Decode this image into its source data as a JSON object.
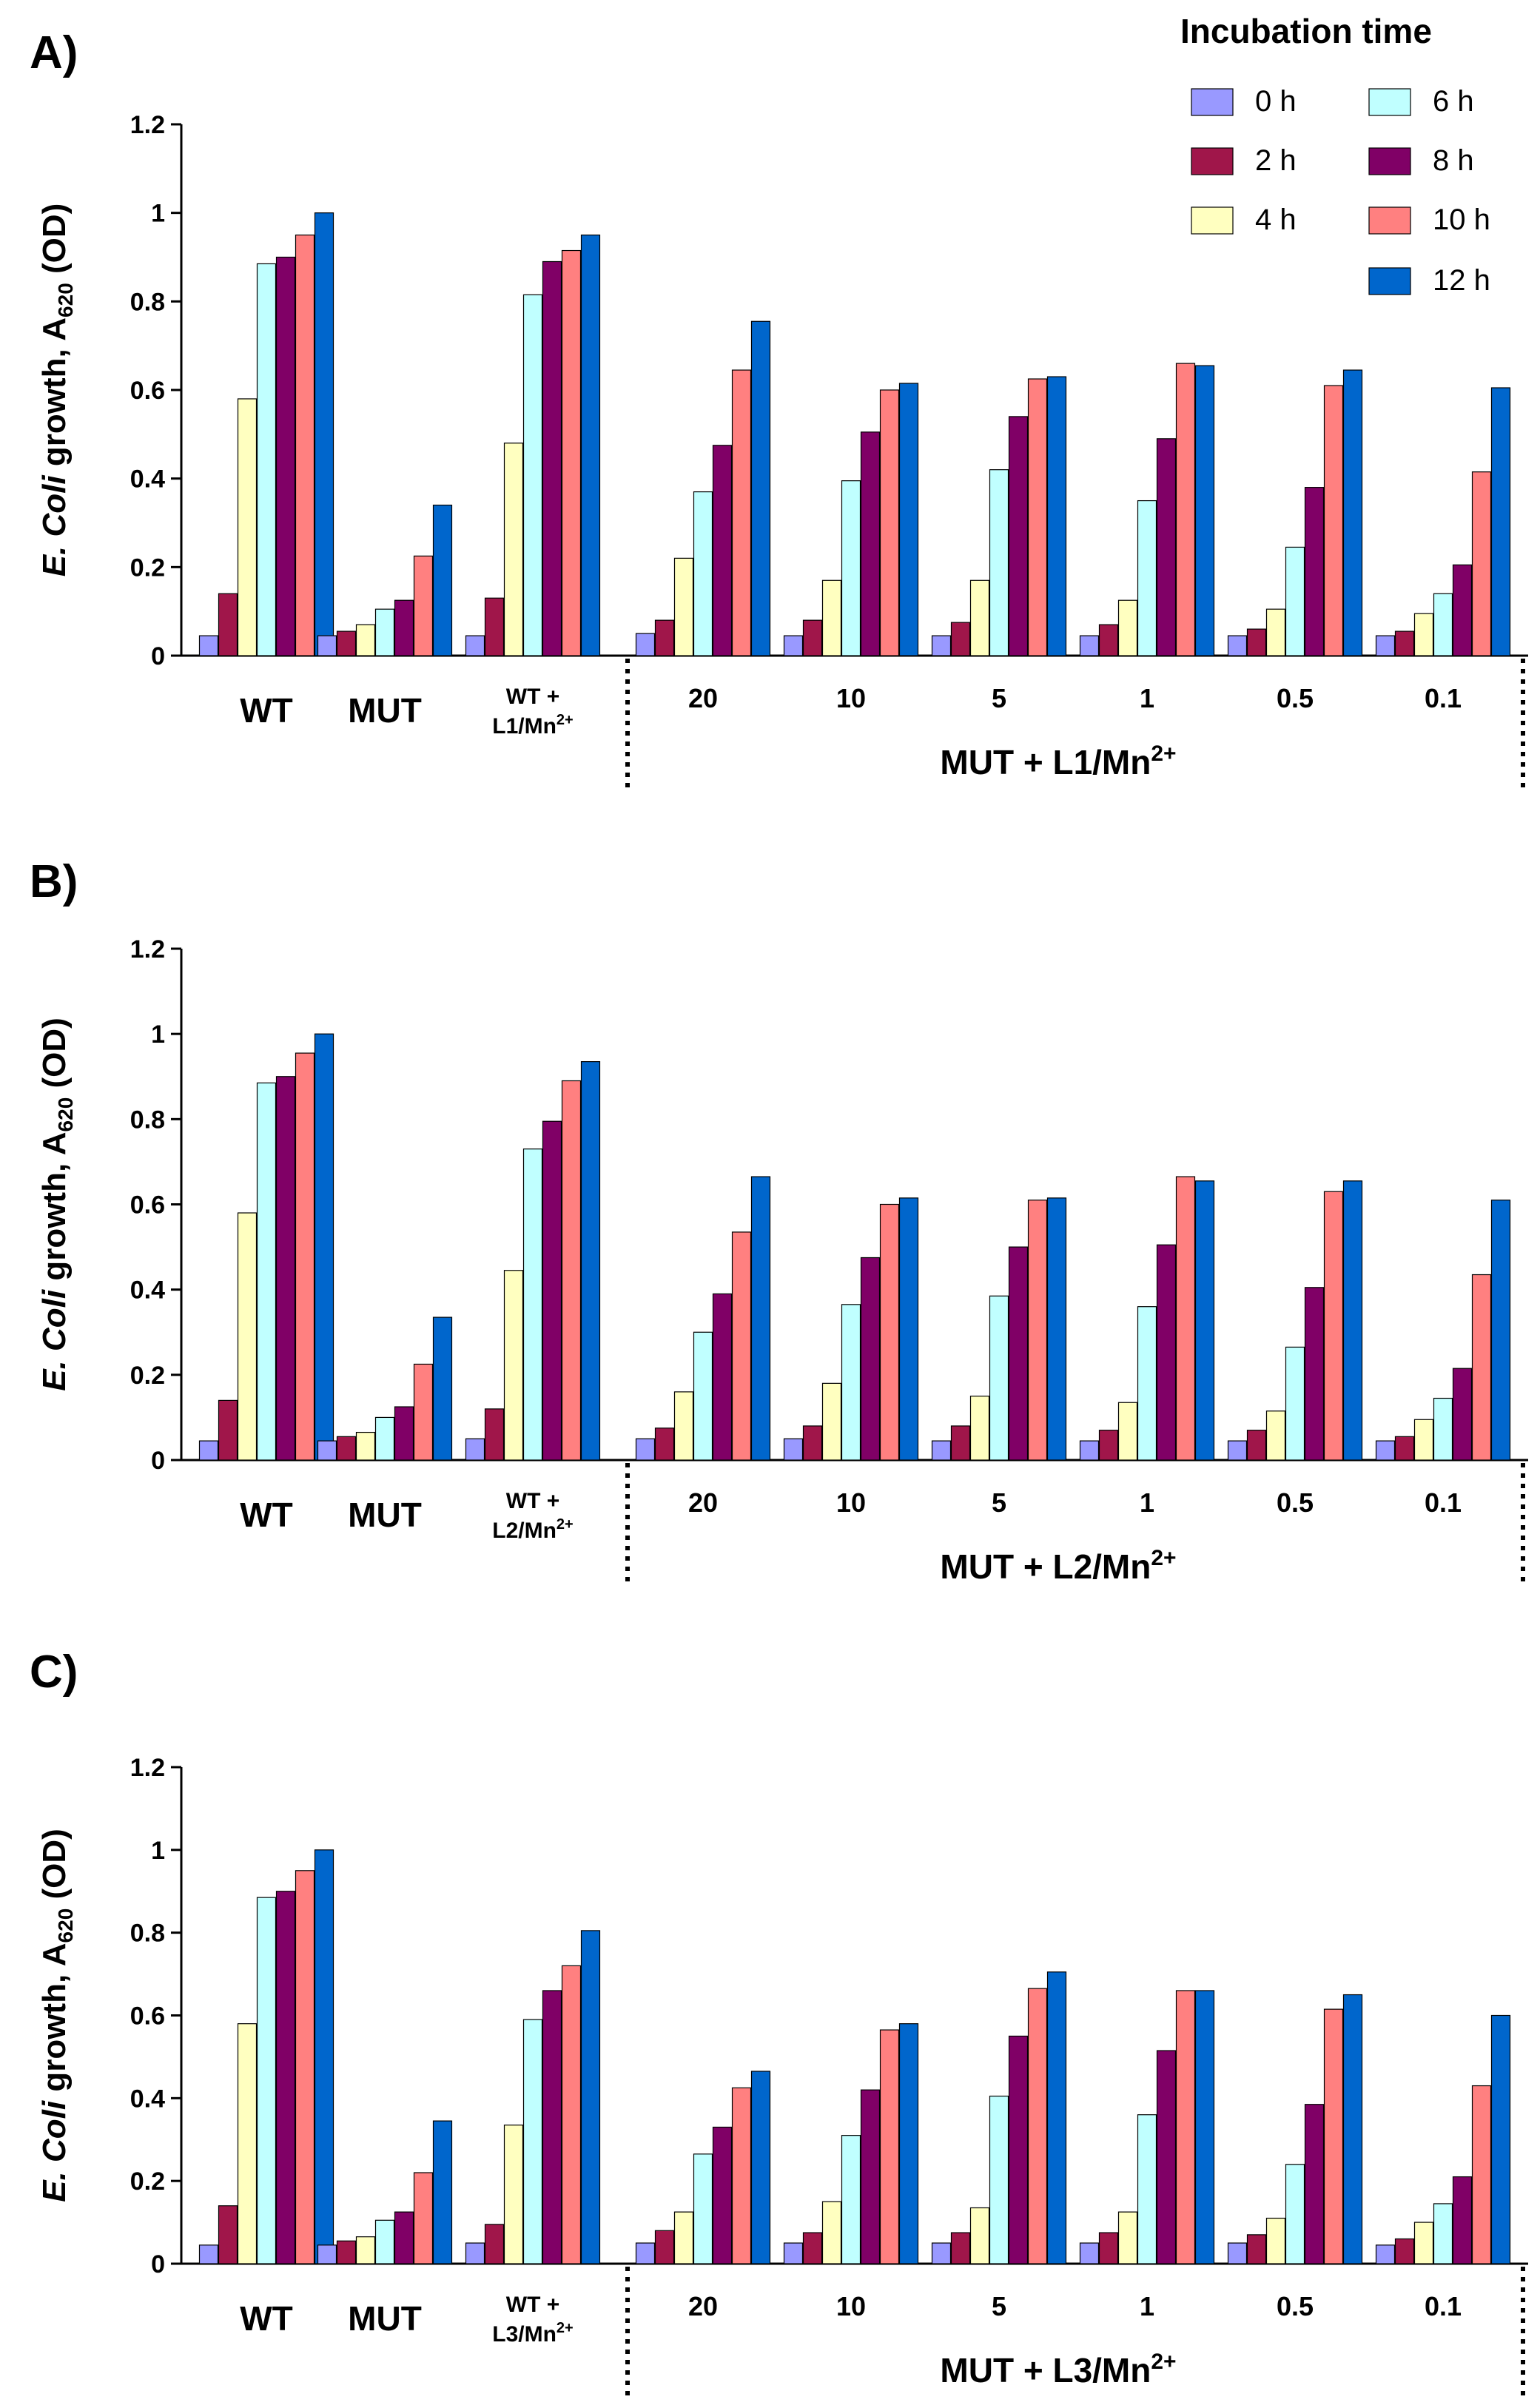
{
  "legend": {
    "title": "Incubation time",
    "entries": [
      {
        "label": "0 h",
        "color": "#9999FF"
      },
      {
        "label": "2 h",
        "color": "#A0164A"
      },
      {
        "label": "4 h",
        "color": "#FFFFC0"
      },
      {
        "label": "6 h",
        "color": "#C0FFFF"
      },
      {
        "label": "8 h",
        "color": "#800066"
      },
      {
        "label": "10 h",
        "color": "#FF8080"
      },
      {
        "label": "12 h",
        "color": "#0066CC"
      }
    ]
  },
  "chart_data": [
    {
      "type": "bar",
      "panel": "A)",
      "ylabel": {
        "italic": "E. Coli",
        "rest": " growth, A",
        "sub": "620",
        "tail": " (OD)"
      },
      "ylim": [
        0,
        1.2
      ],
      "yticks": [
        "0",
        "0.2",
        "0.4",
        "0.6",
        "0.8",
        "1",
        "1.2"
      ],
      "groups": [
        {
          "label": "WT",
          "values": [
            0.045,
            0.14,
            0.58,
            0.885,
            0.9,
            0.95,
            1.0
          ]
        },
        {
          "label": "MUT",
          "values": [
            0.045,
            0.055,
            0.07,
            0.105,
            0.125,
            0.225,
            0.34
          ]
        },
        {
          "label_top": "WT +",
          "label_bottom": "L1/Mn",
          "label_sup": "2+",
          "values": [
            0.045,
            0.13,
            0.48,
            0.815,
            0.89,
            0.915,
            0.95
          ]
        },
        {
          "label": "20",
          "values": [
            0.05,
            0.08,
            0.22,
            0.37,
            0.475,
            0.645,
            0.755
          ]
        },
        {
          "label": "10",
          "values": [
            0.045,
            0.08,
            0.17,
            0.395,
            0.505,
            0.6,
            0.615
          ]
        },
        {
          "label": "5",
          "values": [
            0.045,
            0.075,
            0.17,
            0.42,
            0.54,
            0.625,
            0.63
          ]
        },
        {
          "label": "1",
          "values": [
            0.045,
            0.07,
            0.125,
            0.35,
            0.49,
            0.66,
            0.655
          ]
        },
        {
          "label": "0.5",
          "values": [
            0.045,
            0.06,
            0.105,
            0.245,
            0.38,
            0.61,
            0.645
          ]
        },
        {
          "label": "0.1",
          "values": [
            0.045,
            0.055,
            0.095,
            0.14,
            0.205,
            0.415,
            0.605
          ]
        }
      ],
      "bracket_label": {
        "text": "MUT + L1/Mn",
        "sup": "2+"
      }
    },
    {
      "type": "bar",
      "panel": "B)",
      "ylabel": {
        "italic": "E. Coli",
        "rest": " growth, A",
        "sub": "620",
        "tail": " (OD)"
      },
      "ylim": [
        0,
        1.2
      ],
      "yticks": [
        "0",
        "0.2",
        "0.4",
        "0.6",
        "0.8",
        "1",
        "1.2"
      ],
      "groups": [
        {
          "label": "WT",
          "values": [
            0.045,
            0.14,
            0.58,
            0.885,
            0.9,
            0.955,
            1.0
          ]
        },
        {
          "label": "MUT",
          "values": [
            0.045,
            0.055,
            0.065,
            0.1,
            0.125,
            0.225,
            0.335
          ]
        },
        {
          "label_top": "WT +",
          "label_bottom": "L2/Mn",
          "label_sup": "2+",
          "values": [
            0.05,
            0.12,
            0.445,
            0.73,
            0.795,
            0.89,
            0.935
          ]
        },
        {
          "label": "20",
          "values": [
            0.05,
            0.075,
            0.16,
            0.3,
            0.39,
            0.535,
            0.665
          ]
        },
        {
          "label": "10",
          "values": [
            0.05,
            0.08,
            0.18,
            0.365,
            0.475,
            0.6,
            0.615
          ]
        },
        {
          "label": "5",
          "values": [
            0.045,
            0.08,
            0.15,
            0.385,
            0.5,
            0.61,
            0.615
          ]
        },
        {
          "label": "1",
          "values": [
            0.045,
            0.07,
            0.135,
            0.36,
            0.505,
            0.665,
            0.655
          ]
        },
        {
          "label": "0.5",
          "values": [
            0.045,
            0.07,
            0.115,
            0.265,
            0.405,
            0.63,
            0.655
          ]
        },
        {
          "label": "0.1",
          "values": [
            0.045,
            0.055,
            0.095,
            0.145,
            0.215,
            0.435,
            0.61
          ]
        }
      ],
      "bracket_label": {
        "text": "MUT + L2/Mn",
        "sup": "2+"
      }
    },
    {
      "type": "bar",
      "panel": "C)",
      "ylabel": {
        "italic": "E. Coli",
        "rest": " growth, A",
        "sub": "620",
        "tail": " (OD)"
      },
      "ylim": [
        0,
        1.2
      ],
      "yticks": [
        "0",
        "0.2",
        "0.4",
        "0.6",
        "0.8",
        "1",
        "1.2"
      ],
      "groups": [
        {
          "label": "WT",
          "values": [
            0.045,
            0.14,
            0.58,
            0.885,
            0.9,
            0.95,
            1.0
          ]
        },
        {
          "label": "MUT",
          "values": [
            0.045,
            0.055,
            0.065,
            0.105,
            0.125,
            0.22,
            0.345
          ]
        },
        {
          "label_top": "WT +",
          "label_bottom": "L3/Mn",
          "label_sup": "2+",
          "values": [
            0.05,
            0.095,
            0.335,
            0.59,
            0.66,
            0.72,
            0.805
          ]
        },
        {
          "label": "20",
          "values": [
            0.05,
            0.08,
            0.125,
            0.265,
            0.33,
            0.425,
            0.465
          ]
        },
        {
          "label": "10",
          "values": [
            0.05,
            0.075,
            0.15,
            0.31,
            0.42,
            0.565,
            0.58
          ]
        },
        {
          "label": "5",
          "values": [
            0.05,
            0.075,
            0.135,
            0.405,
            0.55,
            0.665,
            0.705
          ]
        },
        {
          "label": "1",
          "values": [
            0.05,
            0.075,
            0.125,
            0.36,
            0.515,
            0.66,
            0.66
          ]
        },
        {
          "label": "0.5",
          "values": [
            0.05,
            0.07,
            0.11,
            0.24,
            0.385,
            0.615,
            0.65
          ]
        },
        {
          "label": "0.1",
          "values": [
            0.045,
            0.06,
            0.1,
            0.145,
            0.21,
            0.43,
            0.6
          ]
        }
      ],
      "bracket_label": {
        "text": "MUT + L3/Mn",
        "sup": "2+"
      }
    }
  ]
}
